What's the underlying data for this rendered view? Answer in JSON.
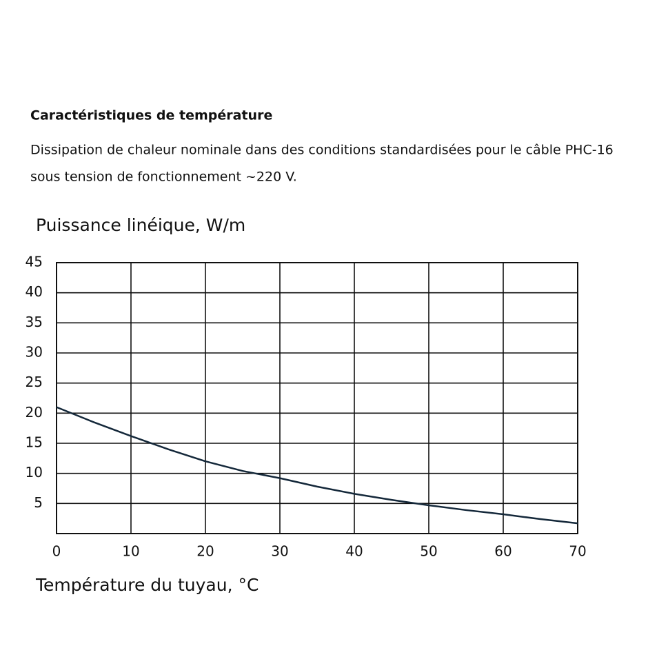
{
  "heading": "Caractéristiques de température",
  "description": [
    "Dissipation de chaleur nominale dans des conditions standardisées pour le câble PHC-16",
    "sous tension de fonctionnement ~220 V."
  ],
  "chart_data": {
    "type": "line",
    "ylabel": "Puissance linéique, W/m",
    "xlabel": "Température du tuyau, °C",
    "x": [
      0,
      5,
      10,
      15,
      20,
      25,
      30,
      35,
      40,
      45,
      50,
      55,
      60,
      65,
      70
    ],
    "values": [
      21,
      18.5,
      16.2,
      14,
      12,
      10.4,
      9.2,
      7.8,
      6.6,
      5.6,
      4.7,
      3.9,
      3.2,
      2.4,
      1.7
    ],
    "color": "#14283a",
    "xlim": [
      0,
      70
    ],
    "xticks": [
      0,
      10,
      20,
      30,
      40,
      50,
      60,
      70
    ],
    "ylim": [
      0,
      45
    ],
    "yticks": [
      5,
      10,
      15,
      20,
      25,
      30,
      35,
      40,
      45
    ],
    "grid": true
  }
}
